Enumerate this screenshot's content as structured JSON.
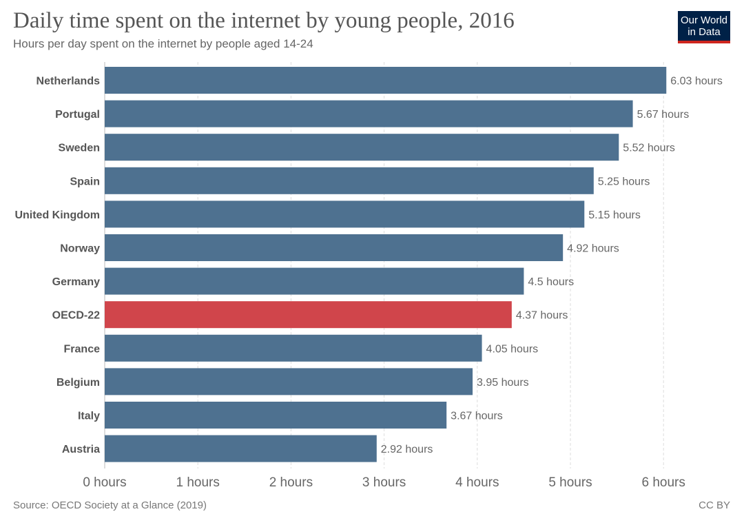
{
  "header": {
    "title": "Daily time spent on the internet by young people, 2016",
    "subtitle": "Hours per day spent on the internet by people aged 14-24"
  },
  "logo": {
    "line1": "Our World",
    "line2": "in Data"
  },
  "footer": {
    "source": "Source: OECD Society at a Glance (2019)",
    "license": "CC BY"
  },
  "colors": {
    "bar": "#4e7190",
    "highlight": "#d0454b"
  },
  "chart_data": {
    "type": "bar",
    "orientation": "horizontal",
    "title": "Daily time spent on the internet by young people, 2016",
    "subtitle": "Hours per day spent on the internet by people aged 14-24",
    "xlim": [
      0,
      6.3
    ],
    "x_ticks": [
      0,
      1,
      2,
      3,
      4,
      5,
      6
    ],
    "x_tick_labels": [
      "0 hours",
      "1 hours",
      "2 hours",
      "3 hours",
      "4 hours",
      "5 hours",
      "6 hours"
    ],
    "grid": true,
    "categories": [
      "Netherlands",
      "Portugal",
      "Sweden",
      "Spain",
      "United Kingdom",
      "Norway",
      "Germany",
      "OECD-22",
      "France",
      "Belgium",
      "Italy",
      "Austria"
    ],
    "values": [
      6.03,
      5.67,
      5.52,
      5.25,
      5.15,
      4.92,
      4.5,
      4.37,
      4.05,
      3.95,
      3.67,
      2.92
    ],
    "value_labels": [
      "6.03 hours",
      "5.67 hours",
      "5.52 hours",
      "5.25 hours",
      "5.15 hours",
      "4.92 hours",
      "4.5 hours",
      "4.37 hours",
      "4.05 hours",
      "3.95 hours",
      "3.67 hours",
      "2.92 hours"
    ],
    "highlight": "OECD-22"
  }
}
